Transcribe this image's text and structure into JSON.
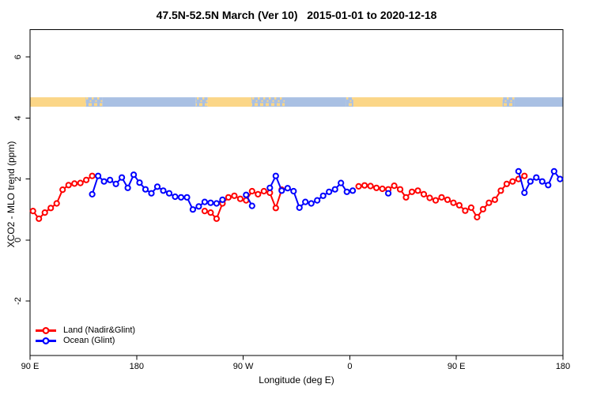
{
  "chart_data": {
    "type": "line",
    "title": "47.5N-52.5N March (Ver 10)   2015-01-01 to 2020-12-18",
    "xlabel": "Longitude (deg E)",
    "ylabel": "XCO2 - MLO trend (ppm)",
    "grid": "off",
    "legend_position": "bottom-left",
    "x_axis": {
      "unit": "deg E (wrapped, 450 deg span)",
      "domain_deg_east": [
        90,
        540
      ],
      "ticks": [
        {
          "deg": 90,
          "label": "90 E"
        },
        {
          "deg": 180,
          "label": "180"
        },
        {
          "deg": 270,
          "label": "90 W"
        },
        {
          "deg": 360,
          "label": "0"
        },
        {
          "deg": 450,
          "label": "90 E"
        },
        {
          "deg": 540,
          "label": "180"
        }
      ]
    },
    "y_axis": {
      "lim": [
        -3.8,
        6.9
      ],
      "ticks": [
        {
          "value": 6,
          "label": "6"
        },
        {
          "value": 4,
          "label": "4"
        },
        {
          "value": 2,
          "label": "2"
        },
        {
          "value": 0,
          "label": "0"
        },
        {
          "value": -2,
          "label": "-2"
        }
      ]
    },
    "surface_band": {
      "description": "land/ocean surface-type strip drawn across the plot",
      "value_from": 4.37,
      "value_to": 4.68,
      "colors": {
        "land": "#FBD687",
        "ocean": "#A9C0E3"
      },
      "segments": [
        {
          "from": 90,
          "to": 137,
          "type": "land"
        },
        {
          "from": 137,
          "to": 151,
          "type": "mixed"
        },
        {
          "from": 151,
          "to": 230,
          "type": "ocean"
        },
        {
          "from": 230,
          "to": 240,
          "type": "mixed"
        },
        {
          "from": 240,
          "to": 277,
          "type": "land"
        },
        {
          "from": 277,
          "to": 305,
          "type": "mixed"
        },
        {
          "from": 305,
          "to": 357,
          "type": "ocean"
        },
        {
          "from": 357,
          "to": 363,
          "type": "mixed"
        },
        {
          "from": 363,
          "to": 489,
          "type": "land"
        },
        {
          "from": 489,
          "to": 499,
          "type": "mixed"
        },
        {
          "from": 499,
          "to": 540,
          "type": "ocean"
        }
      ]
    },
    "series": [
      {
        "name": "Land (Nadir&Glint)",
        "color": "#FF0000",
        "runs": [
          {
            "start_lon": 92.5,
            "step": 5,
            "values": [
              0.95,
              0.7,
              0.9,
              1.05,
              1.2,
              1.65,
              1.8,
              1.85,
              1.87,
              1.97,
              2.1
            ]
          },
          {
            "start_lon": 237.5,
            "step": 5,
            "values": [
              0.95,
              0.9,
              0.7,
              1.2,
              1.4,
              1.45,
              1.35,
              1.3,
              1.6,
              1.5,
              1.6,
              1.55,
              1.05,
              1.65
            ]
          },
          {
            "start_lon": 367.5,
            "step": 5,
            "values": [
              1.76,
              1.79,
              1.77,
              1.71,
              1.68,
              1.66,
              1.78,
              1.66,
              1.4,
              1.58,
              1.62,
              1.5,
              1.38,
              1.3,
              1.4,
              1.32,
              1.22,
              1.14,
              0.96,
              1.06,
              0.75,
              1.01,
              1.22,
              1.32,
              1.62,
              1.84,
              1.92,
              2.0,
              2.1
            ]
          }
        ]
      },
      {
        "name": "Ocean (Glint)",
        "color": "#0000FF",
        "runs": [
          {
            "start_lon": 142.5,
            "step": 5,
            "values": [
              1.5,
              2.1,
              1.92,
              1.97,
              1.84,
              2.05,
              1.71,
              2.14,
              1.88,
              1.66,
              1.53,
              1.75,
              1.62,
              1.53,
              1.42,
              1.4,
              1.4,
              1.0,
              1.1,
              1.25,
              1.22,
              1.2,
              1.32
            ]
          },
          {
            "start_lon": 272.5,
            "step": 5,
            "values": [
              1.48,
              1.12
            ]
          },
          {
            "start_lon": 292.5,
            "step": 5,
            "values": [
              1.71,
              2.1,
              1.62,
              1.7,
              1.6,
              1.06,
              1.25,
              1.2,
              1.3,
              1.45,
              1.58,
              1.66,
              1.87,
              1.58,
              1.62
            ]
          },
          {
            "start_lon": 392.5,
            "step": 5,
            "values": [
              1.53
            ]
          },
          {
            "start_lon": 502.5,
            "step": 5,
            "values": [
              2.25,
              1.55,
              1.92,
              2.05,
              1.92,
              1.8,
              2.25,
              2.0
            ]
          }
        ]
      }
    ]
  }
}
